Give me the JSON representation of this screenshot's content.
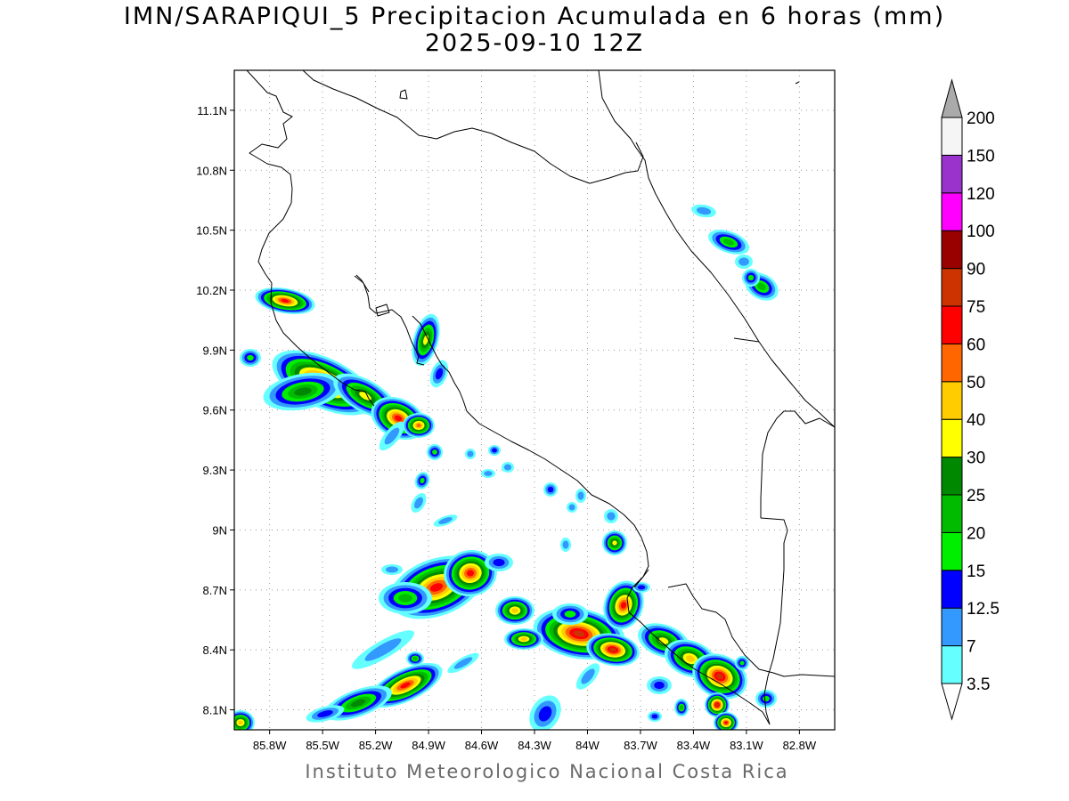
{
  "title": {
    "line1": "IMN/SARAPIQUI_5 Precipitacion Acumulada en 6 horas (mm)",
    "line2": "2025-09-10 12Z"
  },
  "footer": "Instituto Meteorologico Nacional Costa Rica",
  "map": {
    "lon_range": [
      -86.0,
      -82.6
    ],
    "lat_range": [
      8.0,
      11.3
    ],
    "x_ticks": [
      "85.8W",
      "85.5W",
      "85.2W",
      "84.9W",
      "84.6W",
      "84.3W",
      "84W",
      "83.7W",
      "83.4W",
      "83.1W",
      "82.8W"
    ],
    "y_ticks": [
      "8.1N",
      "8.4N",
      "8.7N",
      "9N",
      "9.3N",
      "9.6N",
      "9.9N",
      "10.2N",
      "10.5N",
      "10.8N",
      "11.1N"
    ],
    "x_tick_values": [
      -85.8,
      -85.5,
      -85.2,
      -84.9,
      -84.6,
      -84.3,
      -84.0,
      -83.7,
      -83.4,
      -83.1,
      -82.8
    ],
    "y_tick_values": [
      8.1,
      8.4,
      8.7,
      9.0,
      9.3,
      9.6,
      9.9,
      10.2,
      10.5,
      10.8,
      11.1
    ],
    "grid": true
  },
  "colorbar": {
    "unit": "mm",
    "levels": [
      "3.5",
      "7",
      "12.5",
      "15",
      "20",
      "25",
      "30",
      "40",
      "50",
      "60",
      "75",
      "90",
      "100",
      "120",
      "150",
      "200"
    ],
    "colors": [
      "#ffffff",
      "#66ffff",
      "#3399ff",
      "#0000ff",
      "#00ee00",
      "#00bb00",
      "#008800",
      "#ffff00",
      "#ffcc00",
      "#ff6600",
      "#ff0000",
      "#cc3300",
      "#990000",
      "#ff00ff",
      "#9933cc",
      "#f5f5f5",
      "#aaaaaa"
    ]
  }
}
